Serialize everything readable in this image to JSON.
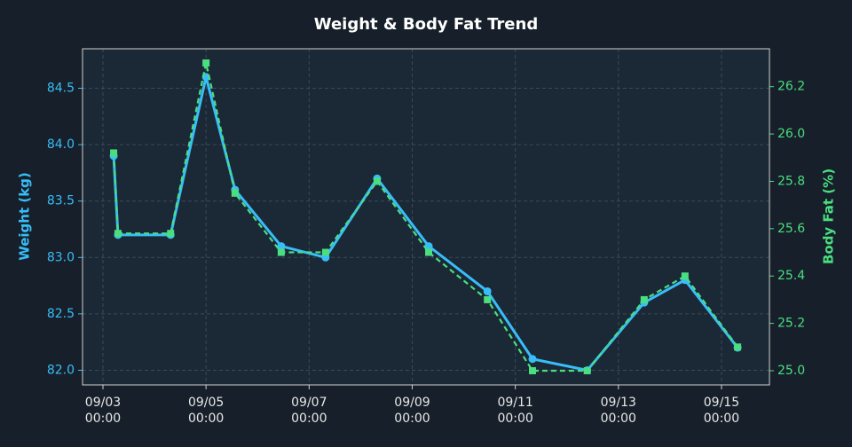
{
  "chart_data": {
    "type": "line",
    "title": "Weight & Body Fat Trend",
    "ylabel": "Weight (kg)",
    "y2label": "Body Fat (%)",
    "x": [
      "09/03 05:00",
      "09/03 07:00",
      "09/04 07:30",
      "09/05 00:00",
      "09/05 13:30",
      "09/06 11:00",
      "09/07 07:40",
      "09/08 07:40",
      "09/09 07:40",
      "09/10 11:00",
      "09/11 08:00",
      "09/12 09:30",
      "09/13 12:00",
      "09/14 07:00",
      "09/15 07:30"
    ],
    "series": [
      {
        "name": "Weight (kg)",
        "color": "#38bdf8",
        "axis": "y",
        "values": [
          83.9,
          83.2,
          83.2,
          84.6,
          83.6,
          83.1,
          83.0,
          83.7,
          83.1,
          82.7,
          82.1,
          82.0,
          82.6,
          82.8,
          82.2
        ]
      },
      {
        "name": "Body Fat (%)",
        "color": "#4ade80",
        "axis": "y2",
        "values": [
          25.92,
          25.58,
          25.58,
          26.3,
          25.75,
          25.5,
          25.5,
          25.8,
          25.5,
          25.3,
          25.0,
          25.0,
          25.3,
          25.4,
          25.1
        ]
      }
    ],
    "xlim": [
      "09/02 14:30",
      "09/15 22:20"
    ],
    "xticks": [
      "09/03 00:00",
      "09/05 00:00",
      "09/07 00:00",
      "09/09 00:00",
      "09/11 00:00",
      "09/13 00:00",
      "09/15 00:00"
    ],
    "ylim": [
      81.87,
      84.85
    ],
    "yticks": [
      {
        "value": 82,
        "label": "82.0"
      },
      82.5,
      {
        "value": 83,
        "label": "83.0"
      },
      83.5,
      {
        "value": 84,
        "label": "84.0"
      },
      84.5
    ],
    "y2lim": [
      24.94,
      26.36
    ],
    "y2ticks": [
      {
        "value": 25,
        "label": "25.0"
      },
      25.2,
      25.4,
      25.6,
      25.8,
      {
        "value": 26,
        "label": "26.0"
      },
      26.2
    ],
    "grid": true
  }
}
